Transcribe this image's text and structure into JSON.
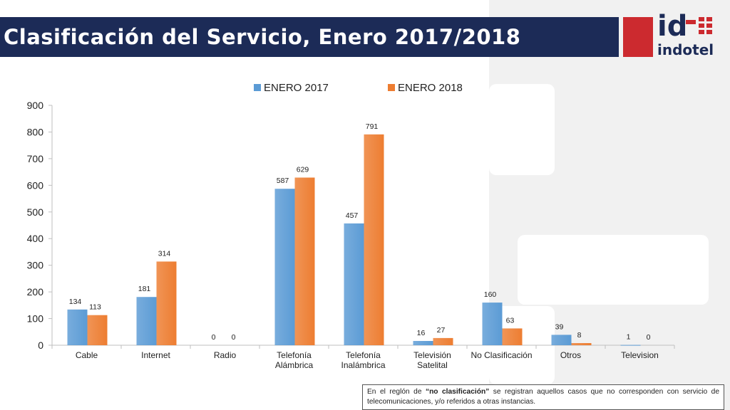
{
  "slide": {
    "title": "Clasificación del Servicio, Enero 2017/2018",
    "logo": {
      "id": "id",
      "word": "indotel"
    }
  },
  "colors": {
    "title_bar": "#1c2b57",
    "series_2017": "#5b9bd5",
    "series_2018": "#ed7d31",
    "logo_red": "#cc2a2f"
  },
  "chart_data": {
    "type": "bar",
    "title": "",
    "xlabel": "",
    "ylabel": "",
    "ylim": [
      0,
      900
    ],
    "yticks": [
      0,
      100,
      200,
      300,
      400,
      500,
      600,
      700,
      800,
      900
    ],
    "grid": false,
    "legend_position": "top",
    "categories": [
      [
        "Cable"
      ],
      [
        "Internet"
      ],
      [
        "Radio"
      ],
      [
        "Telefonía",
        "Alámbrica"
      ],
      [
        "Telefonía",
        "Inalámbrica"
      ],
      [
        "Televisión",
        "Satelital"
      ],
      [
        "No Clasificación"
      ],
      [
        "Otros"
      ],
      [
        "Television"
      ]
    ],
    "series": [
      {
        "name": "ENERO 2017",
        "color": "#5b9bd5",
        "values": [
          134,
          181,
          0,
          587,
          457,
          16,
          160,
          39,
          1
        ]
      },
      {
        "name": "ENERO 2018",
        "color": "#ed7d31",
        "values": [
          113,
          314,
          0,
          629,
          791,
          27,
          63,
          8,
          0
        ]
      }
    ]
  },
  "note": {
    "prefix": "En el reglón de ",
    "highlight": "“no clasificación”",
    "suffix": " se registran aquellos casos que no corresponden con servicio de telecomunicaciones, y/o referidos a otras instancias."
  }
}
